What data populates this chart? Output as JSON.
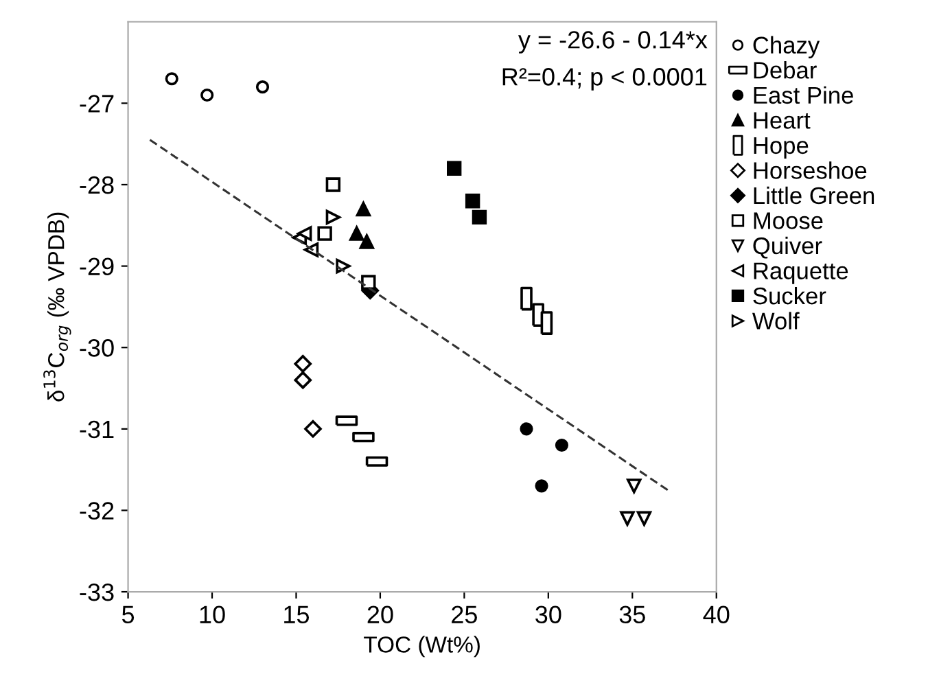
{
  "chart_data": {
    "type": "scatter",
    "xlabel": "TOC (Wt%)",
    "ylabel": "δ$^{13}$C$_{org}$ (‰ VPDB)",
    "xlim": [
      5,
      40
    ],
    "ylim": [
      -33,
      -26
    ],
    "xticks": [
      5,
      10,
      15,
      20,
      25,
      30,
      35,
      40
    ],
    "yticks": [
      -33,
      -32,
      -31,
      -30,
      -29,
      -28,
      -27
    ],
    "grid": false,
    "legend": "top right",
    "annotations": [
      "y = -26.6 - 0.14*x",
      "R²=0.4; p < 0.0001"
    ],
    "series": [
      {
        "name": "Chazy",
        "color": "#000000",
        "marker": "circle-open",
        "x": [
          7.6,
          9.7,
          13.0
        ],
        "values": [
          -26.7,
          -26.9,
          -26.8
        ]
      },
      {
        "name": "Debar",
        "color": "#000000",
        "marker": "rect-wide-open",
        "x": [
          18.0,
          19.0,
          19.8
        ],
        "values": [
          -30.9,
          -31.1,
          -31.4
        ]
      },
      {
        "name": "East Pine",
        "color": "#000000",
        "marker": "circle",
        "x": [
          28.7,
          30.8,
          29.6
        ],
        "values": [
          -31.0,
          -31.2,
          -31.7
        ]
      },
      {
        "name": "Heart",
        "color": "#000000",
        "marker": "triangle",
        "x": [
          19.0,
          18.6,
          19.2
        ],
        "values": [
          -28.3,
          -28.6,
          -28.7
        ]
      },
      {
        "name": "Hope",
        "color": "#000000",
        "marker": "rect-tall-open",
        "x": [
          28.7,
          29.4,
          29.9
        ],
        "values": [
          -29.4,
          -29.6,
          -29.7
        ]
      },
      {
        "name": "Horseshoe",
        "color": "#000000",
        "marker": "diamond-open",
        "x": [
          15.4,
          15.4,
          16.0
        ],
        "values": [
          -30.2,
          -30.4,
          -31.0
        ]
      },
      {
        "name": "Little Green",
        "color": "#000000",
        "marker": "diamond",
        "x": [
          19.4
        ],
        "values": [
          -29.3
        ]
      },
      {
        "name": "Moose",
        "color": "#000000",
        "marker": "square-open",
        "x": [
          17.2,
          16.7,
          19.3
        ],
        "values": [
          -28.0,
          -28.6,
          -29.2
        ]
      },
      {
        "name": "Quiver",
        "color": "#000000",
        "marker": "triangle-down-open",
        "x": [
          35.1,
          34.7,
          35.7
        ],
        "values": [
          -31.7,
          -32.1,
          -32.1
        ]
      },
      {
        "name": "Raquette",
        "color": "#000000",
        "marker": "triangle-left-open",
        "x": [
          15.2,
          15.5,
          15.9
        ],
        "values": [
          -28.65,
          -28.6,
          -28.8
        ]
      },
      {
        "name": "Sucker",
        "color": "#000000",
        "marker": "square",
        "x": [
          24.4,
          25.5,
          25.9
        ],
        "values": [
          -27.8,
          -28.2,
          -28.4
        ]
      },
      {
        "name": "Wolf",
        "color": "#000000",
        "marker": "triangle-right-open",
        "x": [
          17.2,
          17.8
        ],
        "values": [
          -28.4,
          -29.0
        ]
      },
      {
        "type": "line",
        "color": "#333333",
        "line_style": "dashed",
        "x": [
          6.3,
          37.1
        ],
        "values": [
          -27.45,
          -31.75
        ]
      }
    ]
  }
}
